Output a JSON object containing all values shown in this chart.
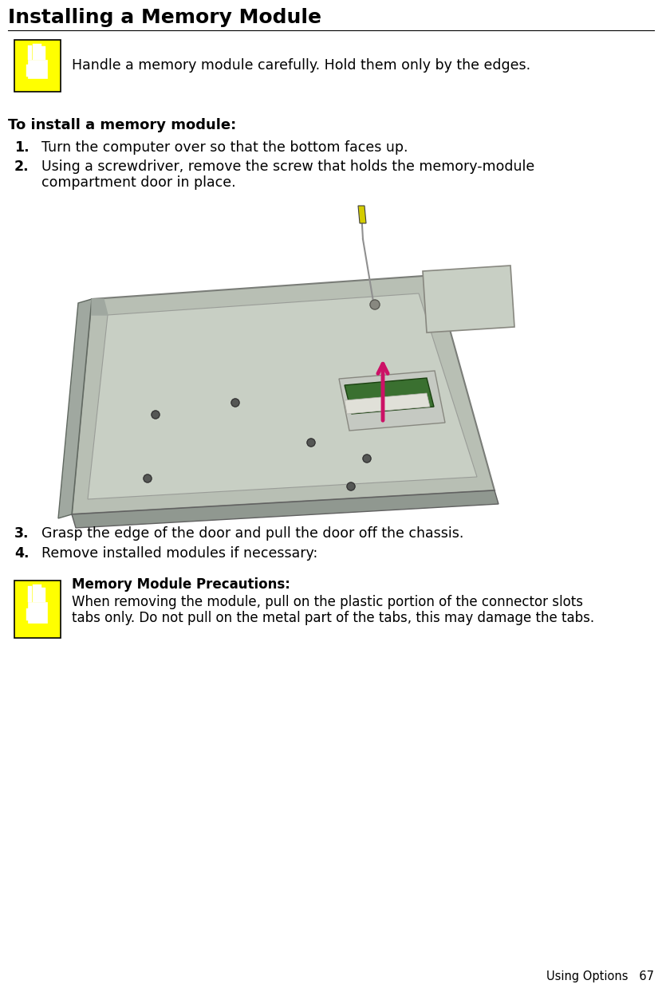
{
  "title": "Installing a Memory Module",
  "title_fontsize": 18,
  "bg_color": "#ffffff",
  "text_color": "#000000",
  "caution_bg": "#ffff00",
  "caution_border": "#000000",
  "body_fontsize": 12.5,
  "section_title_fontsize": 13,
  "note_title_fontsize": 12,
  "note_body_fontsize": 12,
  "caution_text_1": "Handle a memory module carefully. Hold them only by the edges.",
  "section_title": "To install a memory module:",
  "steps": [
    "Turn the computer over so that the bottom faces up.",
    "Using a screwdriver, remove the screw that holds the memory-module\ncompartment door in place.",
    "Grasp the edge of the door and pull the door off the chassis.",
    "Remove installed modules if necessary:"
  ],
  "note_title": "Memory Module Precautions:",
  "note_body_line1": "When removing the module, pull on the plastic portion of the connector slots",
  "note_body_line2": "tabs only. Do not pull on the metal part of the tabs, this may damage the tabs.",
  "footer_text": "Using Options   67",
  "footer_fontsize": 10.5
}
